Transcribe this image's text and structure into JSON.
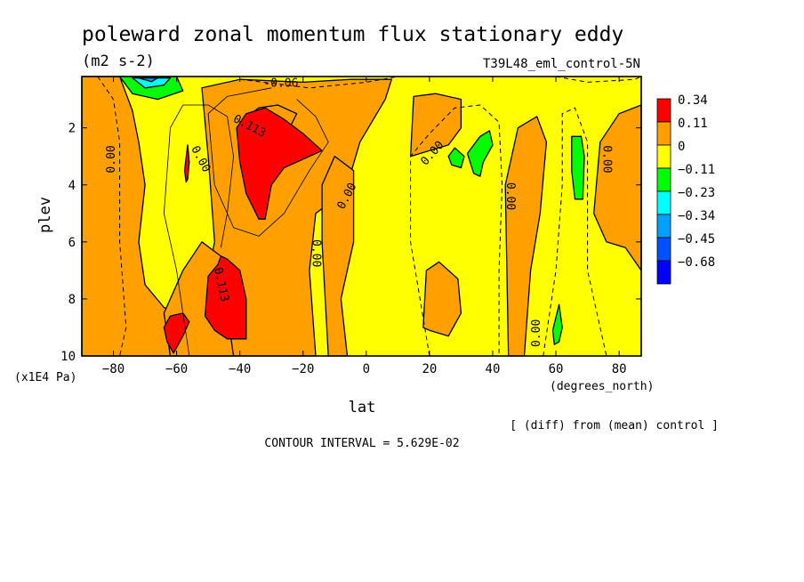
{
  "chart_data": {
    "type": "heatmap",
    "title": "poleward zonal momentum flux stationary eddy",
    "units": "(m2 s-2)",
    "dataset": "T39L48_eml_control-5N",
    "xlabel": "lat",
    "xunits": "(degrees_north)",
    "ylabel": "plev",
    "yunits": "(x1E4 Pa)",
    "xlim": [
      -90,
      87
    ],
    "ylim": [
      10,
      0.2
    ],
    "x_ticks": [
      -80,
      -60,
      -40,
      -20,
      0,
      20,
      40,
      60,
      80
    ],
    "x_tick_labels": [
      "−80",
      "−60",
      "−40",
      "−20",
      "0",
      "20",
      "40",
      "60",
      "80"
    ],
    "y_ticks": [
      2,
      4,
      6,
      8,
      10
    ],
    "y_tick_labels": [
      "2",
      "4",
      "6",
      "8",
      "10"
    ],
    "contour_labels": [
      "0.00",
      "0.113",
      "-0.06"
    ],
    "note": "[ (diff) from (mean) control ]",
    "contour_interval_text": "CONTOUR INTERVAL = 5.629E-02",
    "legend": {
      "placement": "right",
      "levels": [
        {
          "label": "0.34",
          "color": "#ff0000"
        },
        {
          "label": "0.11",
          "color": "#ff9f00"
        },
        {
          "label": "0",
          "color": "#ffff00"
        },
        {
          "label": "−0.11",
          "color": "#00ff00"
        },
        {
          "label": "−0.23",
          "color": "#00ffff"
        },
        {
          "label": "−0.34",
          "color": "#00a0ff"
        },
        {
          "label": "−0.45",
          "color": "#0050ff"
        },
        {
          "label": "−0.68",
          "color": "#0000ff"
        }
      ]
    },
    "regions": [
      {
        "level": "0.11",
        "points": [
          [
            -90,
            10
          ],
          [
            -90,
            0.2
          ],
          [
            -78,
            0.2
          ],
          [
            -74,
            1.4
          ],
          [
            -72,
            2.5
          ],
          [
            -70,
            4
          ],
          [
            -72,
            6
          ],
          [
            -70,
            7.5
          ],
          [
            -64,
            8.3
          ],
          [
            -58,
            8.6
          ],
          [
            -52,
            8.2
          ],
          [
            -48,
            6
          ],
          [
            -50,
            3
          ],
          [
            -52,
            0.6
          ],
          [
            -40,
            0.3
          ],
          [
            -20,
            0.4
          ],
          [
            -5,
            0.3
          ],
          [
            8,
            0.3
          ],
          [
            6,
            1
          ],
          [
            -2,
            2.5
          ],
          [
            -6,
            4
          ],
          [
            -10,
            4.5
          ],
          [
            -16,
            5
          ],
          [
            -18,
            7
          ],
          [
            -16,
            10
          ]
        ]
      },
      {
        "level": "0.11",
        "points": [
          [
            -62,
            10
          ],
          [
            -64,
            8.5
          ],
          [
            -58,
            7
          ],
          [
            -52,
            6
          ],
          [
            -46,
            6.5
          ],
          [
            -44,
            8.5
          ],
          [
            -42,
            10
          ]
        ]
      },
      {
        "level": "0.11",
        "points": [
          [
            -12,
            10
          ],
          [
            -14,
            6
          ],
          [
            -14,
            4
          ],
          [
            -10,
            3
          ],
          [
            -4,
            3.5
          ],
          [
            -4,
            6
          ],
          [
            -8,
            8
          ],
          [
            -6,
            10
          ]
        ]
      },
      {
        "level": "0.11",
        "points": [
          [
            15,
            0.9
          ],
          [
            22,
            0.8
          ],
          [
            30,
            1
          ],
          [
            30,
            2
          ],
          [
            26,
            2.6
          ],
          [
            20,
            2.8
          ],
          [
            14,
            3
          ]
        ]
      },
      {
        "level": "0.11",
        "points": [
          [
            45,
            10
          ],
          [
            44,
            4
          ],
          [
            48,
            2
          ],
          [
            54,
            1.6
          ],
          [
            57,
            2.5
          ],
          [
            55,
            5
          ],
          [
            52,
            7
          ],
          [
            50,
            10
          ]
        ]
      },
      {
        "level": "0.11",
        "points": [
          [
            74,
            2.5
          ],
          [
            80,
            1.5
          ],
          [
            87,
            1.2
          ],
          [
            87,
            7
          ],
          [
            82,
            6.2
          ],
          [
            76,
            6
          ],
          [
            72,
            5
          ]
        ]
      },
      {
        "level": "0.11",
        "points": [
          [
            18,
            9
          ],
          [
            19,
            7
          ],
          [
            23,
            6.7
          ],
          [
            29,
            7.3
          ],
          [
            30,
            8.5
          ],
          [
            26,
            9.3
          ],
          [
            20,
            9.1
          ]
        ]
      },
      {
        "level": "0.11",
        "points": [
          [
            -22,
            1.5
          ],
          [
            -28,
            1.2
          ],
          [
            -34,
            1.3
          ],
          [
            -40,
            1.8
          ],
          [
            -36,
            2.5
          ],
          [
            -26,
            2.4
          ]
        ]
      },
      {
        "level": "0.34",
        "points": [
          [
            -41,
            2
          ],
          [
            -38,
            1.5
          ],
          [
            -32,
            1.3
          ],
          [
            -26,
            1.7
          ],
          [
            -20,
            2.2
          ],
          [
            -14,
            2.8
          ],
          [
            -20,
            3.1
          ],
          [
            -26,
            3.4
          ],
          [
            -30,
            4
          ],
          [
            -32,
            5.2
          ],
          [
            -34,
            5.2
          ],
          [
            -38,
            4.3
          ],
          [
            -40,
            3.2
          ]
        ]
      },
      {
        "level": "0.34",
        "points": [
          [
            -51,
            8.6
          ],
          [
            -50,
            7.2
          ],
          [
            -47,
            6.8
          ],
          [
            -46,
            6.5
          ],
          [
            -44,
            6.6
          ],
          [
            -40,
            7
          ],
          [
            -38,
            8
          ],
          [
            -38,
            9.4
          ],
          [
            -44,
            9.4
          ],
          [
            -48,
            9.1
          ]
        ]
      },
      {
        "level": "0.34",
        "points": [
          [
            -63,
            9.5
          ],
          [
            -64,
            9
          ],
          [
            -62,
            8.6
          ],
          [
            -58,
            8.5
          ],
          [
            -56,
            8.8
          ],
          [
            -58,
            9.3
          ],
          [
            -61,
            9.9
          ]
        ]
      },
      {
        "level": "0.34",
        "points": [
          [
            -57.5,
            3.5
          ],
          [
            -56.5,
            2.6
          ],
          [
            -56,
            3.2
          ],
          [
            -56.5,
            3.8
          ],
          [
            -57,
            3.9
          ]
        ]
      },
      {
        "level": "−0.11",
        "points": [
          [
            -78,
            0.2
          ],
          [
            -60,
            0.2
          ],
          [
            -58,
            0.7
          ],
          [
            -66,
            1
          ],
          [
            -74,
            0.8
          ]
        ]
      },
      {
        "level": "−0.23",
        "points": [
          [
            -74,
            0.25
          ],
          [
            -62,
            0.25
          ],
          [
            -64,
            0.5
          ],
          [
            -70,
            0.6
          ]
        ]
      },
      {
        "level": "−0.34",
        "points": [
          [
            -72,
            0.25
          ],
          [
            -66,
            0.25
          ],
          [
            -68,
            0.38
          ]
        ]
      },
      {
        "level": "−0.11",
        "points": [
          [
            26,
            3
          ],
          [
            28,
            2.7
          ],
          [
            31,
            3
          ],
          [
            30,
            3.4
          ],
          [
            27,
            3.3
          ]
        ]
      },
      {
        "level": "−0.11",
        "points": [
          [
            32,
            2.9
          ],
          [
            36,
            2.3
          ],
          [
            39,
            2.1
          ],
          [
            40,
            2.6
          ],
          [
            37,
            3.2
          ],
          [
            36,
            3.7
          ],
          [
            34,
            3.6
          ]
        ]
      },
      {
        "level": "−0.11",
        "points": [
          [
            65,
            2.3
          ],
          [
            68,
            2.3
          ],
          [
            69,
            3
          ],
          [
            68.5,
            4.5
          ],
          [
            66,
            4.5
          ],
          [
            65,
            3.5
          ]
        ]
      },
      {
        "level": "−0.11",
        "points": [
          [
            59,
            9.1
          ],
          [
            61,
            8.2
          ],
          [
            62,
            9
          ],
          [
            61,
            9.5
          ],
          [
            59.5,
            9.6
          ]
        ]
      }
    ],
    "contour_lines": [
      {
        "style": "dashed",
        "points": [
          [
            -85,
            0.2
          ],
          [
            -80,
            1
          ],
          [
            -78,
            2.5
          ],
          [
            -78,
            6
          ],
          [
            -76,
            9
          ],
          [
            -78,
            10
          ]
        ]
      },
      {
        "style": "dashed",
        "points": [
          [
            20,
            10
          ],
          [
            14,
            6
          ],
          [
            14,
            3
          ],
          [
            20,
            2.2
          ],
          [
            28,
            1.3
          ],
          [
            36,
            1.2
          ],
          [
            42,
            1.8
          ],
          [
            43,
            4
          ],
          [
            42,
            7
          ],
          [
            42,
            10
          ]
        ]
      },
      {
        "style": "dashed",
        "points": [
          [
            56,
            10
          ],
          [
            60,
            7
          ],
          [
            62,
            4
          ],
          [
            62,
            1.5
          ],
          [
            66,
            1.3
          ],
          [
            70,
            2.5
          ],
          [
            70,
            7
          ],
          [
            74,
            9
          ],
          [
            76,
            10
          ]
        ]
      },
      {
        "style": "dashed",
        "points": [
          [
            -40,
            0.3
          ],
          [
            -18,
            0.6
          ],
          [
            0,
            0.4
          ],
          [
            10,
            0.2
          ]
        ]
      },
      {
        "style": "dashed",
        "points": [
          [
            60,
            0.2
          ],
          [
            70,
            0.4
          ],
          [
            85,
            0.3
          ],
          [
            87,
            0.2
          ]
        ]
      },
      {
        "style": "thin",
        "points": [
          [
            -56,
            10
          ],
          [
            -60,
            7
          ],
          [
            -64,
            5
          ],
          [
            -62,
            2
          ],
          [
            -58,
            1.2
          ],
          [
            -50,
            1.2
          ],
          [
            -44,
            1.6
          ],
          [
            -42,
            3
          ],
          [
            -44,
            5
          ],
          [
            -46,
            6.2
          ]
        ]
      },
      {
        "style": "thin",
        "points": [
          [
            -30,
            0.6
          ],
          [
            -44,
            0.9
          ],
          [
            -50,
            1.5
          ],
          [
            -48,
            4
          ],
          [
            -42,
            5.5
          ],
          [
            -34,
            5.8
          ],
          [
            -26,
            5
          ],
          [
            -18,
            3.5
          ],
          [
            -12,
            2.5
          ],
          [
            -16,
            1.6
          ],
          [
            -22,
            1
          ]
        ]
      }
    ]
  }
}
